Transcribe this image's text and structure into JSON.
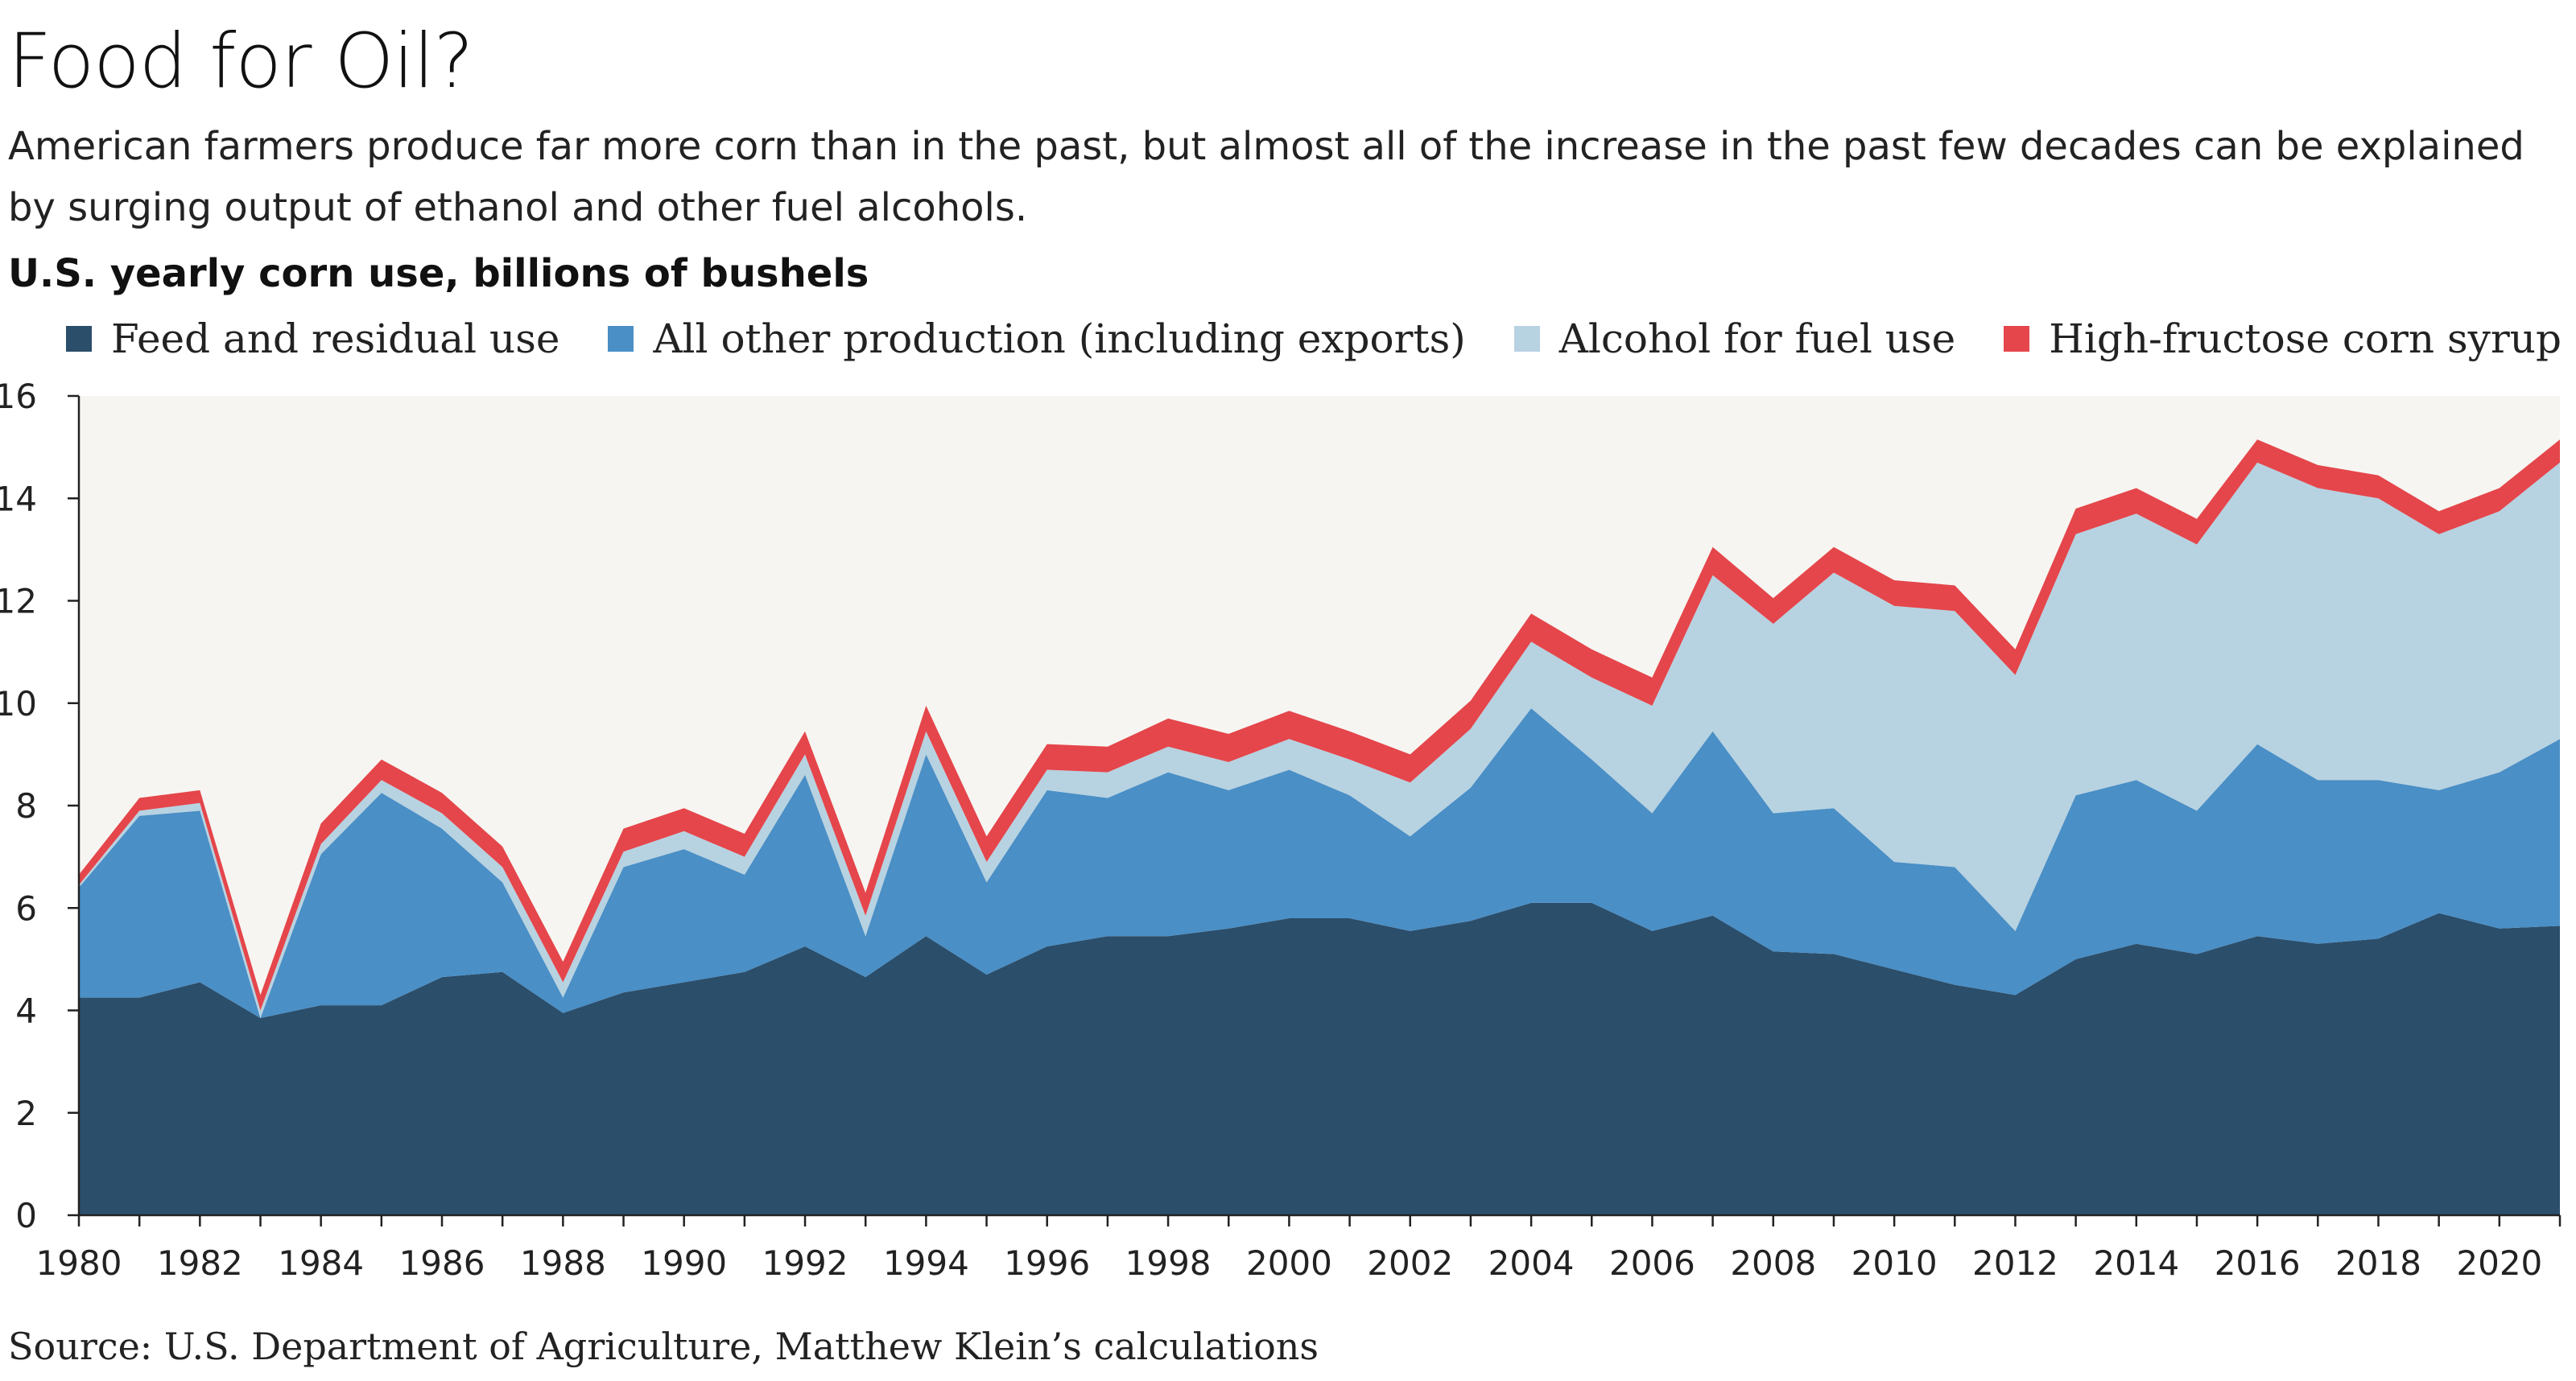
{
  "header": {
    "title": "Food for Oil?",
    "subtitle": "American farmers produce far more corn than in the past, but almost all of the increase in the past few decades can be explained by surging output of ethanol and other fuel alcohols.",
    "units": "U.S. yearly corn use, billions of bushels"
  },
  "source": "Source: U.S. Department of Agriculture, Matthew Klein’s calculations",
  "chart_data": {
    "type": "area",
    "stacked": true,
    "ylabel": "",
    "xlabel": "",
    "ylim": [
      0,
      16
    ],
    "xlim": [
      1980,
      2021
    ],
    "yticks": [
      0,
      2,
      4,
      6,
      8,
      10,
      12,
      14,
      16
    ],
    "xticks": [
      1980,
      1982,
      1984,
      1986,
      1988,
      1990,
      1992,
      1994,
      1996,
      1998,
      2000,
      2002,
      2004,
      2006,
      2008,
      2010,
      2012,
      2014,
      2016,
      2018,
      2020
    ],
    "legend_position": "top",
    "x": [
      1980,
      1981,
      1982,
      1983,
      1984,
      1985,
      1986,
      1987,
      1988,
      1989,
      1990,
      1991,
      1992,
      1993,
      1994,
      1995,
      1996,
      1997,
      1998,
      1999,
      2000,
      2001,
      2002,
      2003,
      2004,
      2005,
      2006,
      2007,
      2008,
      2009,
      2010,
      2011,
      2012,
      2013,
      2014,
      2015,
      2016,
      2017,
      2018,
      2019,
      2020,
      2021
    ],
    "series": [
      {
        "name": "Feed and residual use",
        "color": "#2b4e6b",
        "values": [
          4.25,
          4.25,
          4.55,
          3.85,
          4.1,
          4.1,
          4.65,
          4.75,
          3.95,
          4.35,
          4.55,
          4.75,
          5.25,
          4.65,
          5.45,
          4.7,
          5.25,
          5.45,
          5.45,
          5.6,
          5.8,
          5.8,
          5.55,
          5.75,
          6.1,
          6.1,
          5.55,
          5.85,
          5.15,
          5.1,
          4.8,
          4.5,
          4.3,
          5.0,
          5.3,
          5.1,
          5.45,
          5.3,
          5.4,
          5.9,
          5.6,
          5.65
        ]
      },
      {
        "name": "All other production (including exports)",
        "color": "#4a8fc6",
        "values": [
          2.15,
          3.55,
          3.35,
          0.0,
          2.95,
          4.15,
          2.9,
          1.75,
          0.3,
          2.45,
          2.6,
          1.9,
          3.35,
          0.8,
          3.55,
          1.8,
          3.05,
          2.7,
          3.2,
          2.7,
          2.9,
          2.4,
          1.85,
          2.6,
          3.8,
          2.8,
          2.3,
          3.6,
          2.7,
          2.85,
          2.1,
          2.3,
          1.25,
          3.2,
          3.2,
          2.8,
          3.75,
          3.2,
          3.1,
          2.4,
          3.05,
          3.65
        ]
      },
      {
        "name": "Alcohol for fuel use",
        "color": "#b7d2e1",
        "values": [
          0.05,
          0.1,
          0.15,
          0.15,
          0.2,
          0.25,
          0.3,
          0.3,
          0.3,
          0.3,
          0.35,
          0.35,
          0.4,
          0.4,
          0.45,
          0.4,
          0.4,
          0.5,
          0.5,
          0.55,
          0.6,
          0.7,
          1.05,
          1.15,
          1.3,
          1.6,
          2.1,
          3.05,
          3.7,
          4.6,
          5.0,
          5.0,
          5.0,
          5.1,
          5.2,
          5.2,
          5.5,
          5.7,
          5.5,
          5.0,
          5.1,
          5.4
        ]
      },
      {
        "name": "High-fructose corn syrup",
        "color": "#e4464b",
        "values": [
          0.2,
          0.25,
          0.25,
          0.3,
          0.4,
          0.4,
          0.4,
          0.4,
          0.4,
          0.45,
          0.45,
          0.45,
          0.45,
          0.45,
          0.5,
          0.5,
          0.5,
          0.5,
          0.55,
          0.55,
          0.55,
          0.55,
          0.55,
          0.55,
          0.55,
          0.55,
          0.55,
          0.55,
          0.5,
          0.5,
          0.5,
          0.5,
          0.5,
          0.5,
          0.5,
          0.5,
          0.45,
          0.45,
          0.45,
          0.45,
          0.45,
          0.45
        ]
      }
    ]
  },
  "colors": {
    "plot_background": "#f7f5f1",
    "axis": "#222222"
  }
}
